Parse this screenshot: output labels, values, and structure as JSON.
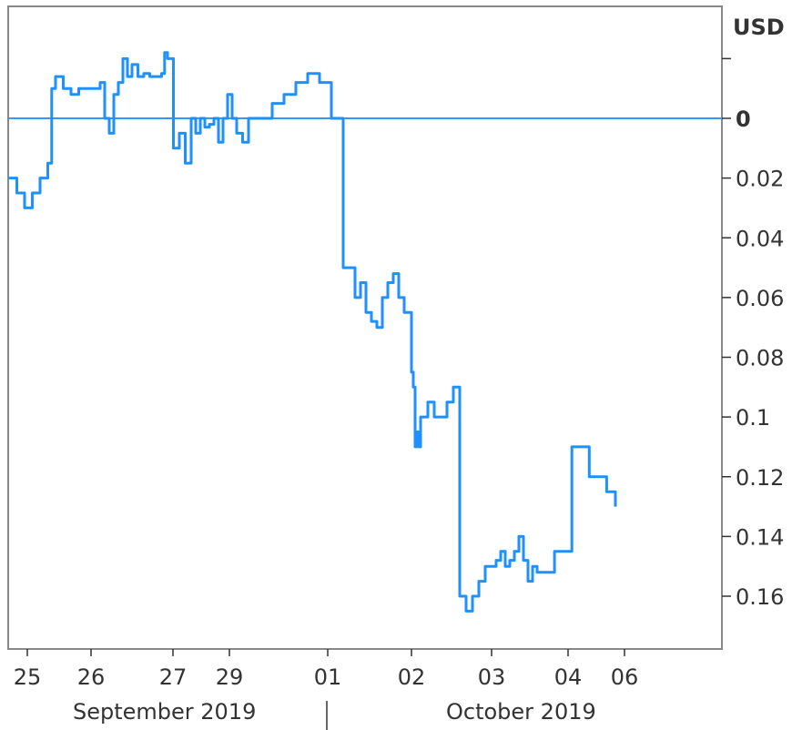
{
  "chart_data": {
    "type": "line",
    "ylabel": "USD",
    "ylim": [
      0.175,
      -0.035
    ],
    "y_ticks": [
      "0.16",
      "0.14",
      "0.12",
      "0.1",
      "0.08",
      "0.06",
      "0.04",
      "0.02",
      "0"
    ],
    "y_tick_values": [
      0.16,
      0.14,
      0.12,
      0.1,
      0.08,
      0.06,
      0.04,
      0.02,
      0
    ],
    "zero_line": 0,
    "x_ticks": [
      "25",
      "26",
      "27",
      "29",
      "01",
      "02",
      "03",
      "04",
      "06"
    ],
    "months": [
      "September 2019",
      "October 2019"
    ],
    "series_color": "#1e90ff",
    "zero_line_color": "#3399ff",
    "frame_color": "#888888",
    "series": [
      {
        "x": [
          0.0,
          0.1,
          0.2,
          0.3,
          0.4,
          0.5,
          0.55,
          0.6,
          0.7,
          0.8,
          0.9,
          1.0,
          1.1,
          1.2,
          1.3,
          1.4,
          1.5,
          1.6,
          1.7,
          1.8,
          1.9,
          2.0,
          2.1,
          2.2,
          2.3,
          2.4,
          2.5,
          2.55,
          2.6,
          2.7,
          2.8,
          2.9,
          3.0,
          3.1,
          3.2,
          3.3,
          3.4,
          3.5,
          3.6,
          3.7,
          3.8,
          3.9,
          4.0,
          4.05,
          4.1,
          4.15,
          4.2,
          4.3,
          4.4,
          4.5,
          4.6,
          4.7,
          4.8,
          4.9,
          5.0,
          5.1,
          5.2,
          5.3,
          5.4,
          5.5,
          5.6,
          5.7,
          5.8,
          5.9,
          6.0,
          6.1,
          6.2,
          6.3,
          6.4,
          6.5,
          6.6,
          6.7,
          6.8,
          6.9,
          7.0,
          7.1,
          7.2,
          7.3,
          7.4,
          7.5,
          7.6,
          7.7,
          7.8,
          7.9,
          8.0,
          8.1,
          8.2,
          8.3,
          8.4,
          8.5,
          8.6,
          8.7,
          8.8,
          8.9,
          9.0,
          9.1,
          9.2,
          9.3,
          9.4,
          9.45
        ],
        "values": [
          0.02,
          0.025,
          0.03,
          0.025,
          0.02,
          0.015,
          -0.01,
          -0.014,
          -0.01,
          -0.008,
          -0.01,
          -0.01,
          -0.01,
          -0.01,
          -0.012,
          0.0,
          0.005,
          -0.008,
          -0.012,
          -0.02,
          -0.014,
          -0.018,
          -0.014,
          -0.015,
          -0.014,
          -0.014,
          -0.015,
          -0.022,
          -0.02,
          0.01,
          0.005,
          0.015,
          0.0,
          0.005,
          0.0,
          0.003,
          0.002,
          0.0,
          0.008,
          0.0,
          -0.008,
          0.0,
          0.005,
          0.008,
          0.0,
          0.0,
          0.0,
          -0.005,
          -0.008,
          -0.012,
          -0.015,
          -0.012,
          0.0,
          0.05,
          0.06,
          0.055,
          0.065,
          0.068,
          0.07,
          0.06,
          0.055,
          0.052,
          0.06,
          0.065,
          0.065,
          0.085,
          0.09,
          0.11,
          0.105,
          0.11,
          0.1,
          0.1,
          0.1,
          0.1,
          0.095,
          0.1,
          0.1,
          0.095,
          0.09,
          0.16,
          0.165,
          0.16,
          0.155,
          0.15,
          0.15,
          0.148,
          0.145,
          0.15,
          0.148,
          0.145,
          0.14,
          0.148,
          0.155,
          0.15,
          0.152,
          0.145,
          0.11,
          0.12,
          0.125,
          0.13
        ]
      }
    ]
  }
}
